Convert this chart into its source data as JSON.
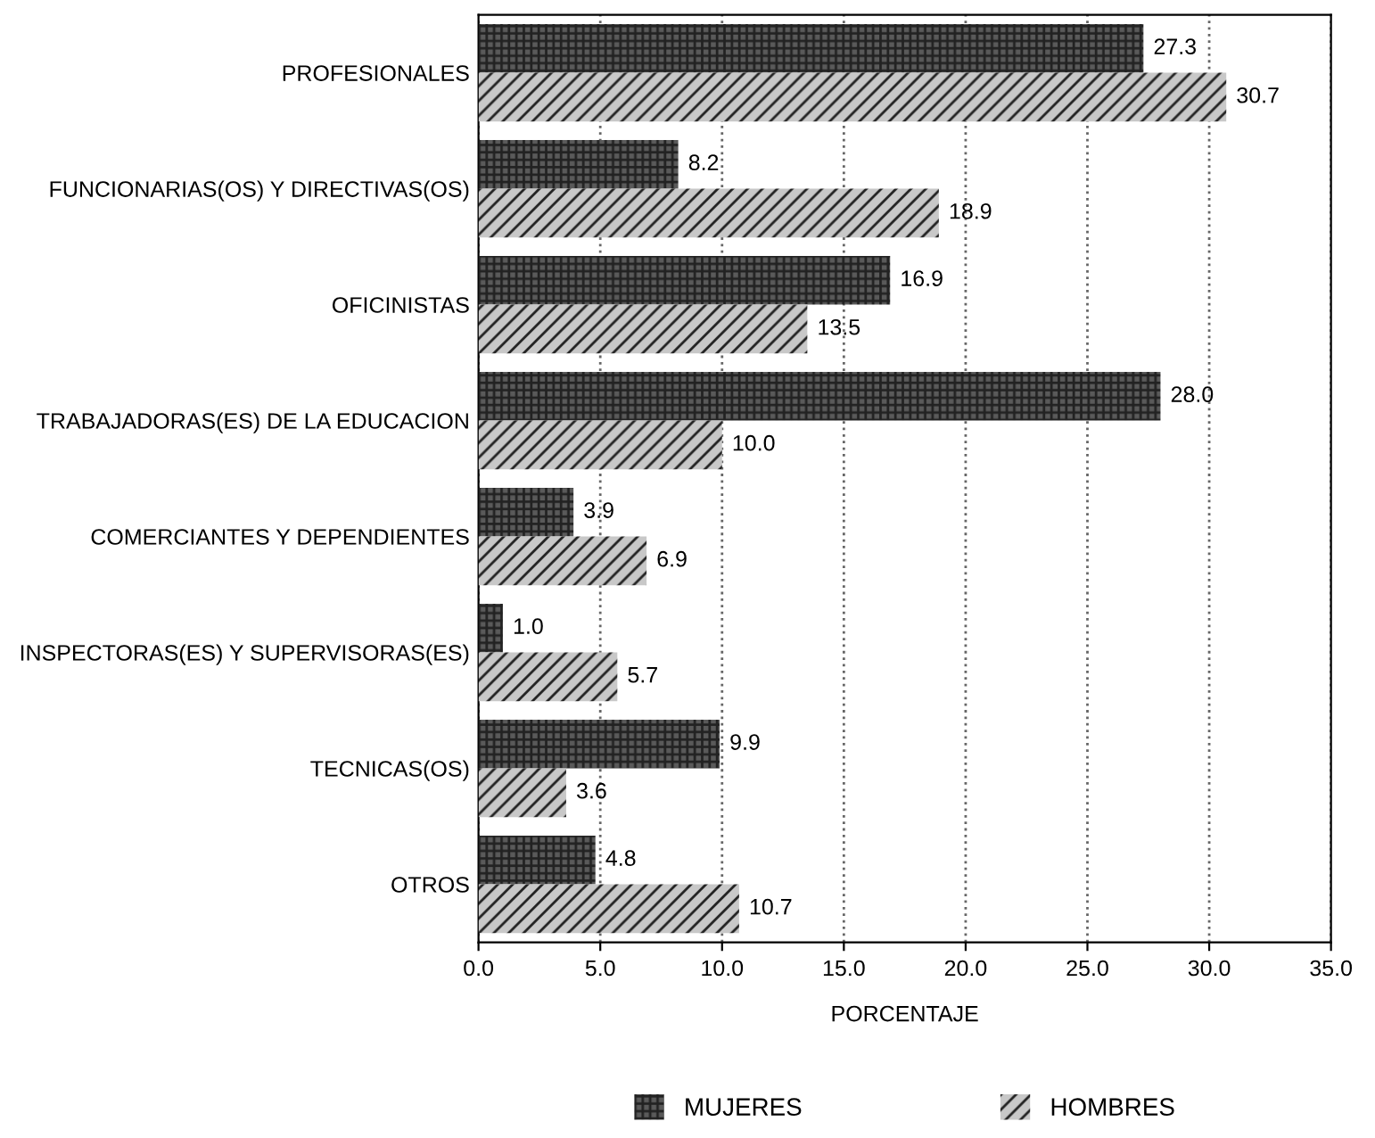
{
  "chart_data": {
    "type": "bar",
    "orientation": "horizontal",
    "xlabel": "PORCENTAJE",
    "categories": [
      "PROFESIONALES",
      "FUNCIONARIAS(OS) Y DIRECTIVAS(OS)",
      "OFICINISTAS",
      "TRABAJADORAS(ES) DE LA EDUCACION",
      "COMERCIANTES Y DEPENDIENTES",
      "INSPECTORAS(ES) Y SUPERVISORAS(ES)",
      "TECNICAS(OS)",
      "OTROS"
    ],
    "series": [
      {
        "name": "MUJERES",
        "color": "#5a5a5a",
        "values": [
          27.3,
          8.2,
          16.9,
          28.0,
          3.9,
          1.0,
          9.9,
          4.8
        ],
        "value_labels": [
          "27.3",
          "8.2",
          "16.9",
          "28.0",
          "3.9",
          "1.0",
          "9.9",
          "4.8"
        ]
      },
      {
        "name": "HOMBRES",
        "color": "#c8c8c8",
        "values": [
          30.7,
          18.9,
          13.5,
          10.0,
          6.9,
          5.7,
          3.6,
          10.7
        ],
        "value_labels": [
          "30.7",
          "18.9",
          "13.5",
          "10.0",
          "6.9",
          "5.7",
          "3.6",
          "10.7"
        ]
      }
    ],
    "xlim": [
      0,
      35
    ],
    "xticks": [
      {
        "value": 0,
        "label": "0.0"
      },
      {
        "value": 5,
        "label": "5.0"
      },
      {
        "value": 10,
        "label": "10.0"
      },
      {
        "value": 15,
        "label": "15.0"
      },
      {
        "value": 20,
        "label": "20.0"
      },
      {
        "value": 25,
        "label": "25.0"
      },
      {
        "value": 30,
        "label": "30.0"
      },
      {
        "value": 35,
        "label": "35.0"
      }
    ],
    "grid": "x",
    "legend": "bottom"
  }
}
